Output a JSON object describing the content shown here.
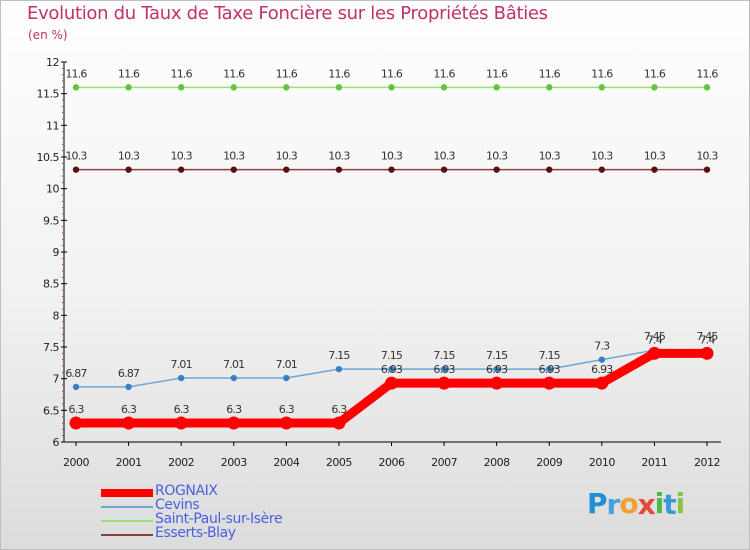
{
  "header": {
    "title": "Evolution du Taux de Taxe Foncière sur les Propriétés Bâties",
    "unit": "(en %)"
  },
  "brand": {
    "name": "Proxiti",
    "letters": [
      "P",
      "r",
      "o",
      "x",
      "i",
      "t",
      "i"
    ]
  },
  "chart_data": {
    "type": "line",
    "title": "Evolution du Taux de Taxe Foncière sur les Propriétés Bâties",
    "ylabel": "(en %)",
    "xlabel": "",
    "ylim": [
      6,
      12
    ],
    "yticks": [
      "6",
      "6.5",
      "7",
      "7.5",
      "8",
      "8.5",
      "9",
      "9.5",
      "10",
      "10.5",
      "11",
      "11.5",
      "12"
    ],
    "categories": [
      "2000",
      "2001",
      "2002",
      "2003",
      "2004",
      "2005",
      "2006",
      "2007",
      "2008",
      "2009",
      "2010",
      "2011",
      "2012"
    ],
    "grid": false,
    "series": [
      {
        "name": "ROGNAIX",
        "color": "#ff0000",
        "highlight": true,
        "values": [
          6.3,
          6.3,
          6.3,
          6.3,
          6.3,
          6.3,
          6.93,
          6.93,
          6.93,
          6.93,
          6.93,
          7.4,
          7.4
        ],
        "labels": [
          "6.3",
          "6.3",
          "6.3",
          "6.3",
          "6.3",
          "6.3",
          "6.93",
          "6.93",
          "6.93",
          "6.93",
          "6.93",
          "7.4",
          "7.4"
        ]
      },
      {
        "name": "Cevins",
        "color": "#6ea6d6",
        "marker": "#3a7fc4",
        "values": [
          6.87,
          6.87,
          7.01,
          7.01,
          7.01,
          7.15,
          7.15,
          7.15,
          7.15,
          7.15,
          7.3,
          7.45,
          7.45
        ],
        "labels": [
          "6.87",
          "6.87",
          "7.01",
          "7.01",
          "7.01",
          "7.15",
          "7.15",
          "7.15",
          "7.15",
          "7.15",
          "7.3",
          "7.45",
          "7.45"
        ]
      },
      {
        "name": "Saint-Paul-sur-Isère",
        "color": "#98e07a",
        "marker": "#63c443",
        "values": [
          11.6,
          11.6,
          11.6,
          11.6,
          11.6,
          11.6,
          11.6,
          11.6,
          11.6,
          11.6,
          11.6,
          11.6,
          11.6
        ],
        "labels": [
          "11.6",
          "11.6",
          "11.6",
          "11.6",
          "11.6",
          "11.6",
          "11.6",
          "11.6",
          "11.6",
          "11.6",
          "11.6",
          "11.6",
          "11.6"
        ]
      },
      {
        "name": "Esserts-Blay",
        "color": "#8a4040",
        "marker": "#5a1010",
        "values": [
          10.3,
          10.3,
          10.3,
          10.3,
          10.3,
          10.3,
          10.3,
          10.3,
          10.3,
          10.3,
          10.3,
          10.3,
          10.3
        ],
        "labels": [
          "10.3",
          "10.3",
          "10.3",
          "10.3",
          "10.3",
          "10.3",
          "10.3",
          "10.3",
          "10.3",
          "10.3",
          "10.3",
          "10.3",
          "10.3"
        ]
      }
    ],
    "legend": "bottom-left"
  }
}
